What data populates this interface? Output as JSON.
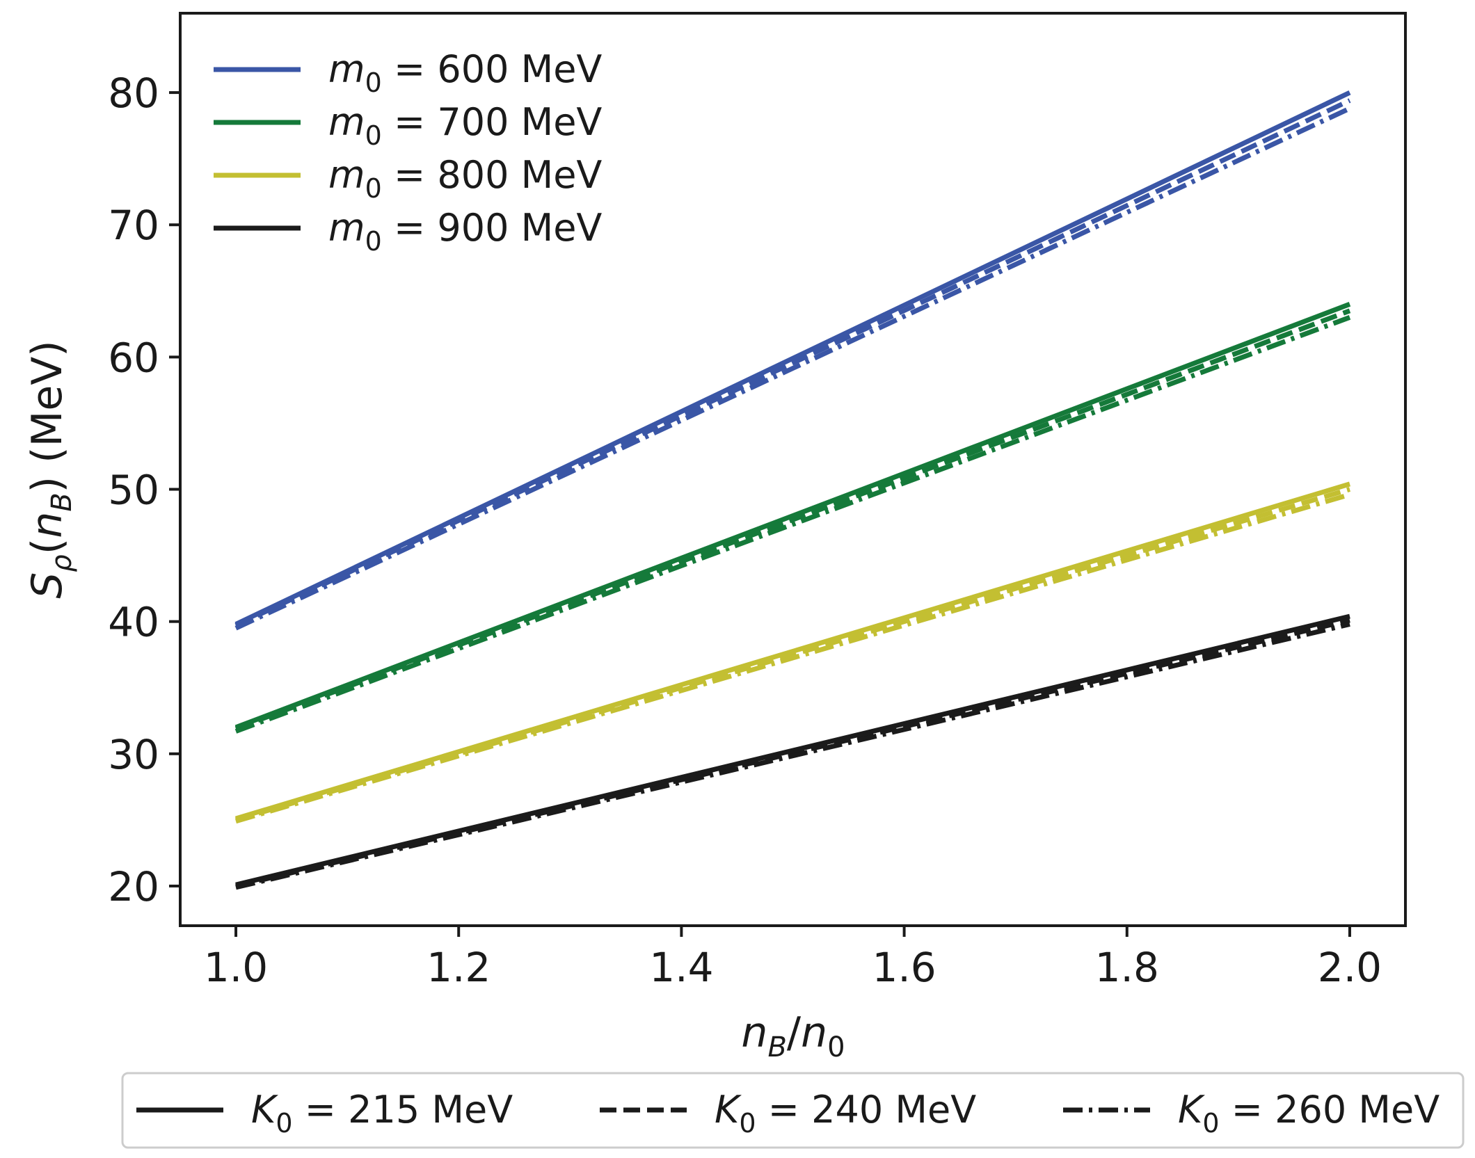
{
  "chart_data": {
    "type": "line",
    "xlabel": "n_B/n_0",
    "ylabel": "S_ρ(n_B) (MeV)",
    "xlim": [
      0.95,
      2.05
    ],
    "ylim": [
      17,
      86
    ],
    "xticks": [
      1.0,
      1.2,
      1.4,
      1.6,
      1.8,
      2.0
    ],
    "xtick_labels": [
      "1.0",
      "1.2",
      "1.4",
      "1.6",
      "1.8",
      "2.0"
    ],
    "yticks": [
      20,
      30,
      40,
      50,
      60,
      70,
      80
    ],
    "ytick_labels": [
      "20",
      "30",
      "40",
      "50",
      "60",
      "70",
      "80"
    ],
    "x": [
      1.0,
      2.0
    ],
    "series": [
      {
        "name": "m0 = 600 MeV, K0 = 215 MeV",
        "group": 0,
        "style": 0,
        "values": [
          39.8,
          80.0
        ]
      },
      {
        "name": "m0 = 600 MeV, K0 = 240 MeV",
        "group": 0,
        "style": 1,
        "values": [
          39.7,
          79.4
        ]
      },
      {
        "name": "m0 = 600 MeV, K0 = 260 MeV",
        "group": 0,
        "style": 2,
        "values": [
          39.5,
          78.8
        ]
      },
      {
        "name": "m0 = 700 MeV, K0 = 215 MeV",
        "group": 1,
        "style": 0,
        "values": [
          32.0,
          64.0
        ]
      },
      {
        "name": "m0 = 700 MeV, K0 = 240 MeV",
        "group": 1,
        "style": 1,
        "values": [
          31.9,
          63.5
        ]
      },
      {
        "name": "m0 = 700 MeV, K0 = 260 MeV",
        "group": 1,
        "style": 2,
        "values": [
          31.7,
          63.0
        ]
      },
      {
        "name": "m0 = 800 MeV, K0 = 215 MeV",
        "group": 2,
        "style": 0,
        "values": [
          25.1,
          50.4
        ]
      },
      {
        "name": "m0 = 800 MeV, K0 = 240 MeV",
        "group": 2,
        "style": 1,
        "values": [
          25.0,
          50.0
        ]
      },
      {
        "name": "m0 = 800 MeV, K0 = 260 MeV",
        "group": 2,
        "style": 2,
        "values": [
          24.9,
          49.6
        ]
      },
      {
        "name": "m0 = 900 MeV, K0 = 215 MeV",
        "group": 3,
        "style": 0,
        "values": [
          20.1,
          40.4
        ]
      },
      {
        "name": "m0 = 900 MeV, K0 = 240 MeV",
        "group": 3,
        "style": 1,
        "values": [
          20.0,
          40.1
        ]
      },
      {
        "name": "m0 = 900 MeV, K0 = 260 MeV",
        "group": 3,
        "style": 2,
        "values": [
          19.9,
          39.8
        ]
      }
    ],
    "color_legend": {
      "placement": "top-left",
      "entries": [
        {
          "symbol": "m",
          "subscript": "0",
          "text": " = 600 MeV",
          "color": "#3a56a6"
        },
        {
          "symbol": "m",
          "subscript": "0",
          "text": " = 700 MeV",
          "color": "#157a3a"
        },
        {
          "symbol": "m",
          "subscript": "0",
          "text": " = 800 MeV",
          "color": "#c3bf32"
        },
        {
          "symbol": "m",
          "subscript": "0",
          "text": " = 900 MeV",
          "color": "#1b1b1b"
        }
      ]
    },
    "style_legend": {
      "placement": "bottom",
      "entries": [
        {
          "symbol": "K",
          "subscript": "0",
          "text": " = 215 MeV",
          "dash": "solid"
        },
        {
          "symbol": "K",
          "subscript": "0",
          "text": " = 240 MeV",
          "dash": "dashed"
        },
        {
          "symbol": "K",
          "subscript": "0",
          "text": " = 260 MeV",
          "dash": "dashdot"
        }
      ]
    }
  }
}
